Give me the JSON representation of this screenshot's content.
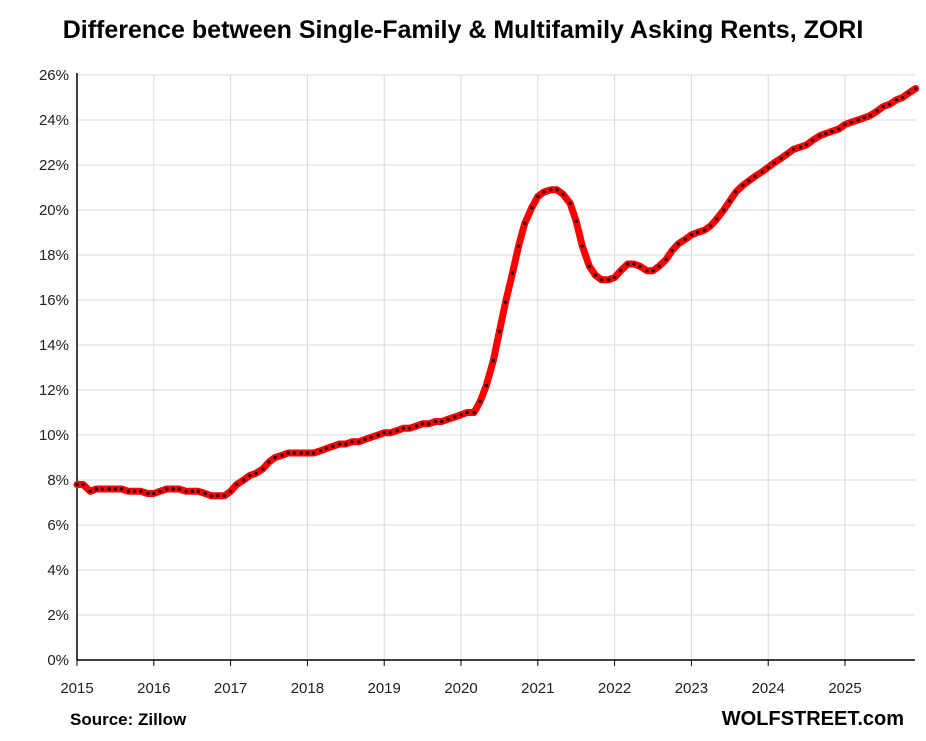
{
  "chart_data": {
    "type": "line",
    "title": "Difference between Single-Family & Multifamily Asking Rents, ZORI",
    "xlabel": "",
    "ylabel": "",
    "x_tick_labels": [
      "2015",
      "2016",
      "2017",
      "2018",
      "2019",
      "2020",
      "2021",
      "2022",
      "2023",
      "2024",
      "2025"
    ],
    "y_tick_labels": [
      "0%",
      "2%",
      "4%",
      "6%",
      "8%",
      "10%",
      "12%",
      "14%",
      "16%",
      "18%",
      "20%",
      "22%",
      "24%",
      "26%"
    ],
    "xlim": [
      2015.0,
      2025.9
    ],
    "ylim": [
      0,
      26
    ],
    "grid": true,
    "series": [
      {
        "color": "#ff0000",
        "marker_color": "#000000",
        "points": [
          [
            2015.0,
            7.8
          ],
          [
            2015.08,
            7.8
          ],
          [
            2015.17,
            7.5
          ],
          [
            2015.25,
            7.6
          ],
          [
            2015.33,
            7.6
          ],
          [
            2015.42,
            7.6
          ],
          [
            2015.5,
            7.6
          ],
          [
            2015.58,
            7.6
          ],
          [
            2015.67,
            7.5
          ],
          [
            2015.75,
            7.5
          ],
          [
            2015.83,
            7.5
          ],
          [
            2015.92,
            7.4
          ],
          [
            2016.0,
            7.4
          ],
          [
            2016.08,
            7.5
          ],
          [
            2016.17,
            7.6
          ],
          [
            2016.25,
            7.6
          ],
          [
            2016.33,
            7.6
          ],
          [
            2016.42,
            7.5
          ],
          [
            2016.5,
            7.5
          ],
          [
            2016.58,
            7.5
          ],
          [
            2016.67,
            7.4
          ],
          [
            2016.75,
            7.3
          ],
          [
            2016.83,
            7.3
          ],
          [
            2016.92,
            7.3
          ],
          [
            2017.0,
            7.5
          ],
          [
            2017.08,
            7.8
          ],
          [
            2017.17,
            8.0
          ],
          [
            2017.25,
            8.2
          ],
          [
            2017.33,
            8.3
          ],
          [
            2017.42,
            8.5
          ],
          [
            2017.5,
            8.8
          ],
          [
            2017.58,
            9.0
          ],
          [
            2017.67,
            9.1
          ],
          [
            2017.75,
            9.2
          ],
          [
            2017.83,
            9.2
          ],
          [
            2017.92,
            9.2
          ],
          [
            2018.0,
            9.2
          ],
          [
            2018.08,
            9.2
          ],
          [
            2018.17,
            9.3
          ],
          [
            2018.25,
            9.4
          ],
          [
            2018.33,
            9.5
          ],
          [
            2018.42,
            9.6
          ],
          [
            2018.5,
            9.6
          ],
          [
            2018.58,
            9.7
          ],
          [
            2018.67,
            9.7
          ],
          [
            2018.75,
            9.8
          ],
          [
            2018.83,
            9.9
          ],
          [
            2018.92,
            10.0
          ],
          [
            2019.0,
            10.1
          ],
          [
            2019.08,
            10.1
          ],
          [
            2019.17,
            10.2
          ],
          [
            2019.25,
            10.3
          ],
          [
            2019.33,
            10.3
          ],
          [
            2019.42,
            10.4
          ],
          [
            2019.5,
            10.5
          ],
          [
            2019.58,
            10.5
          ],
          [
            2019.67,
            10.6
          ],
          [
            2019.75,
            10.6
          ],
          [
            2019.83,
            10.7
          ],
          [
            2019.92,
            10.8
          ],
          [
            2020.0,
            10.9
          ],
          [
            2020.08,
            11.0
          ],
          [
            2020.17,
            11.0
          ],
          [
            2020.25,
            11.5
          ],
          [
            2020.33,
            12.2
          ],
          [
            2020.42,
            13.3
          ],
          [
            2020.5,
            14.6
          ],
          [
            2020.58,
            15.9
          ],
          [
            2020.67,
            17.2
          ],
          [
            2020.75,
            18.4
          ],
          [
            2020.83,
            19.4
          ],
          [
            2020.92,
            20.1
          ],
          [
            2021.0,
            20.6
          ],
          [
            2021.08,
            20.8
          ],
          [
            2021.17,
            20.9
          ],
          [
            2021.25,
            20.9
          ],
          [
            2021.33,
            20.7
          ],
          [
            2021.42,
            20.3
          ],
          [
            2021.5,
            19.5
          ],
          [
            2021.58,
            18.4
          ],
          [
            2021.67,
            17.5
          ],
          [
            2021.75,
            17.1
          ],
          [
            2021.83,
            16.9
          ],
          [
            2021.92,
            16.9
          ],
          [
            2022.0,
            17.0
          ],
          [
            2022.08,
            17.3
          ],
          [
            2022.17,
            17.6
          ],
          [
            2022.25,
            17.6
          ],
          [
            2022.33,
            17.5
          ],
          [
            2022.42,
            17.3
          ],
          [
            2022.5,
            17.3
          ],
          [
            2022.58,
            17.5
          ],
          [
            2022.67,
            17.8
          ],
          [
            2022.75,
            18.2
          ],
          [
            2022.83,
            18.5
          ],
          [
            2022.92,
            18.7
          ],
          [
            2023.0,
            18.9
          ],
          [
            2023.08,
            19.0
          ],
          [
            2023.17,
            19.1
          ],
          [
            2023.25,
            19.3
          ],
          [
            2023.33,
            19.6
          ],
          [
            2023.42,
            20.0
          ],
          [
            2023.5,
            20.4
          ],
          [
            2023.58,
            20.8
          ],
          [
            2023.67,
            21.1
          ],
          [
            2023.75,
            21.3
          ],
          [
            2023.83,
            21.5
          ],
          [
            2023.92,
            21.7
          ],
          [
            2024.0,
            21.9
          ],
          [
            2024.08,
            22.1
          ],
          [
            2024.17,
            22.3
          ],
          [
            2024.25,
            22.5
          ],
          [
            2024.33,
            22.7
          ],
          [
            2024.42,
            22.8
          ],
          [
            2024.5,
            22.9
          ],
          [
            2024.58,
            23.1
          ],
          [
            2024.67,
            23.3
          ],
          [
            2024.75,
            23.4
          ],
          [
            2024.83,
            23.5
          ],
          [
            2024.92,
            23.6
          ],
          [
            2025.0,
            23.8
          ],
          [
            2025.08,
            23.9
          ],
          [
            2025.17,
            24.0
          ],
          [
            2025.25,
            24.1
          ],
          [
            2025.33,
            24.2
          ],
          [
            2025.42,
            24.4
          ],
          [
            2025.5,
            24.6
          ],
          [
            2025.58,
            24.7
          ],
          [
            2025.67,
            24.9
          ],
          [
            2025.75,
            25.0
          ],
          [
            2025.83,
            25.2
          ],
          [
            2025.92,
            25.4
          ]
        ]
      }
    ]
  },
  "footer": {
    "source": "Source: Zillow",
    "brand": "WOLFSTREET.com"
  }
}
